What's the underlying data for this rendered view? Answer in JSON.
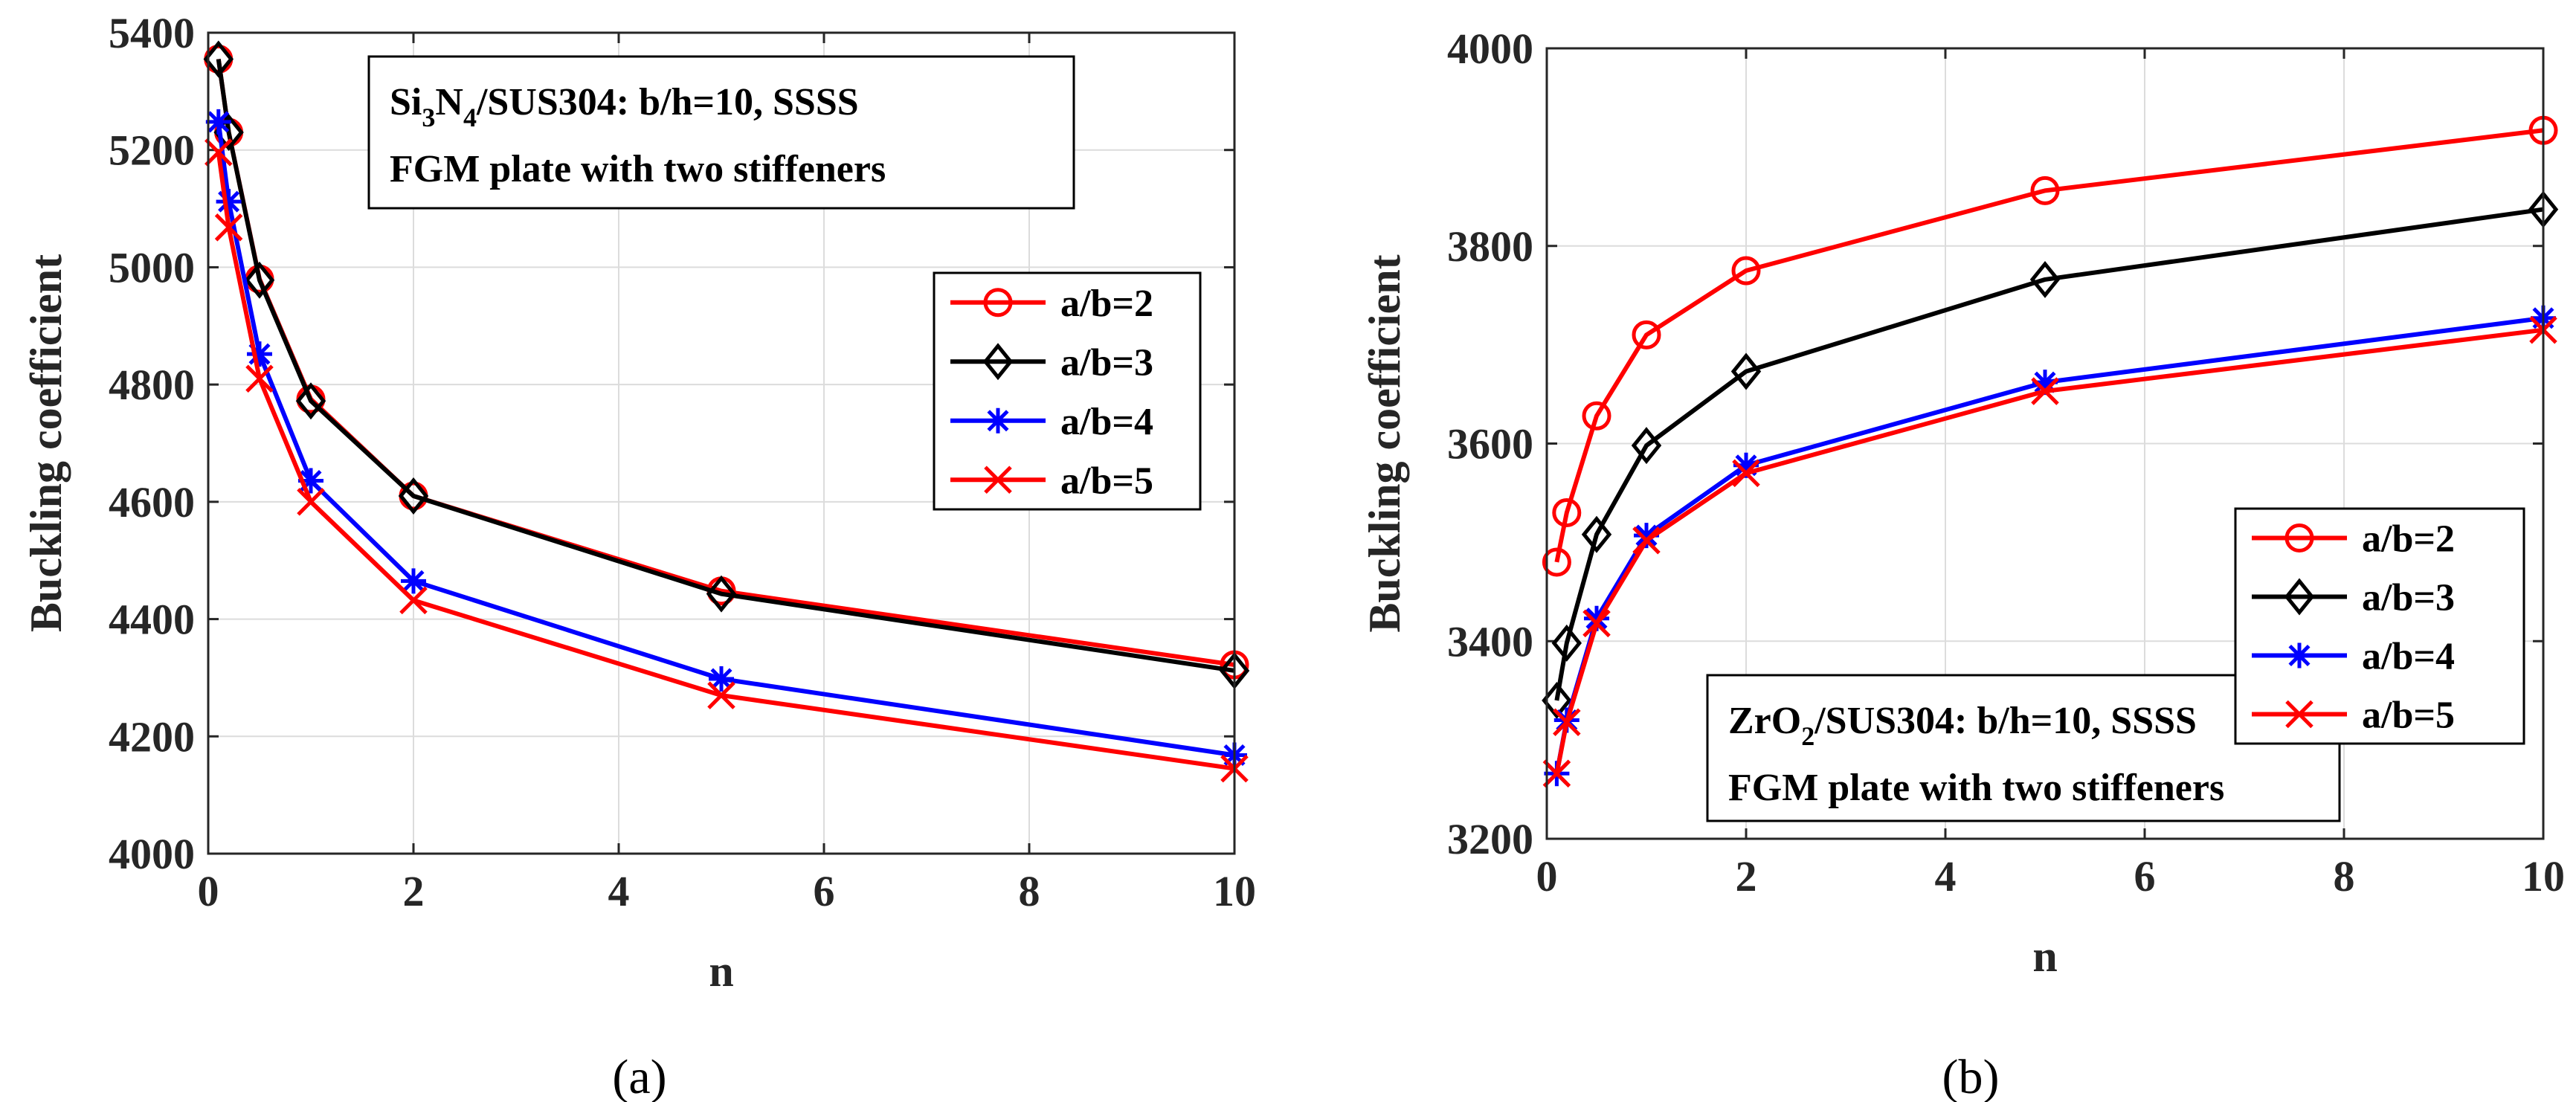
{
  "chart_data": [
    {
      "type": "line",
      "panel_label": "(a)",
      "xlabel": "n",
      "ylabel": "Buckling coefficient",
      "xlim": [
        0,
        10
      ],
      "ylim": [
        4000,
        5400
      ],
      "xticks": [
        "0",
        "2",
        "4",
        "6",
        "8",
        "10"
      ],
      "yticks": [
        "4000",
        "4200",
        "4400",
        "4600",
        "4800",
        "5000",
        "5200",
        "5400"
      ],
      "grid": true,
      "legend_position": "right",
      "annotation": {
        "line1_prefix": "Si",
        "line1_sub1": "3",
        "line1_mid": "N",
        "line1_sub2": "4",
        "line1_suffix": "/SUS304: b/h=10, SSSS",
        "line2": "FGM plate with two stiffeners"
      },
      "x": [
        0.1,
        0.2,
        0.5,
        1,
        2,
        5,
        10
      ],
      "series": [
        {
          "name": "a/b=2",
          "color": "#ff0000",
          "marker": "circle",
          "values": [
            5355,
            5230,
            4980,
            4775,
            4610,
            4448,
            4322
          ]
        },
        {
          "name": "a/b=3",
          "color": "#000000",
          "marker": "diamond",
          "values": [
            5355,
            5230,
            4978,
            4772,
            4610,
            4443,
            4312
          ]
        },
        {
          "name": "a/b=4",
          "color": "#0000ff",
          "marker": "star",
          "values": [
            5248,
            5112,
            4852,
            4636,
            4465,
            4298,
            4168
          ]
        },
        {
          "name": "a/b=5",
          "color": "#ff0000",
          "marker": "x",
          "values": [
            5196,
            5068,
            4810,
            4600,
            4432,
            4270,
            4145
          ]
        }
      ]
    },
    {
      "type": "line",
      "panel_label": "(b)",
      "xlabel": "n",
      "ylabel": "Buckling coefficient",
      "xlim": [
        0,
        10
      ],
      "ylim": [
        3200,
        4000
      ],
      "xticks": [
        "0",
        "2",
        "4",
        "6",
        "8",
        "10"
      ],
      "yticks": [
        "3200",
        "3400",
        "3600",
        "3800",
        "4000"
      ],
      "grid": true,
      "legend_position": "right",
      "annotation": {
        "line1_prefix": "ZrO",
        "line1_sub1": "2",
        "line1_mid": "",
        "line1_sub2": "",
        "line1_suffix": "/SUS304: b/h=10, SSSS",
        "line2": "FGM plate with two stiffeners"
      },
      "x": [
        0.1,
        0.2,
        0.5,
        1,
        2,
        5,
        10
      ],
      "series": [
        {
          "name": "a/b=2",
          "color": "#ff0000",
          "marker": "circle",
          "values": [
            3480,
            3530,
            3628,
            3710,
            3775,
            3856,
            3917
          ]
        },
        {
          "name": "a/b=3",
          "color": "#000000",
          "marker": "diamond",
          "values": [
            3340,
            3398,
            3508,
            3598,
            3673,
            3766,
            3837
          ]
        },
        {
          "name": "a/b=4",
          "color": "#0000ff",
          "marker": "star",
          "values": [
            3266,
            3320,
            3423,
            3507,
            3578,
            3662,
            3727
          ]
        },
        {
          "name": "a/b=5",
          "color": "#ff0000",
          "marker": "x",
          "values": [
            3266,
            3318,
            3418,
            3502,
            3570,
            3653,
            3715
          ]
        }
      ]
    }
  ]
}
